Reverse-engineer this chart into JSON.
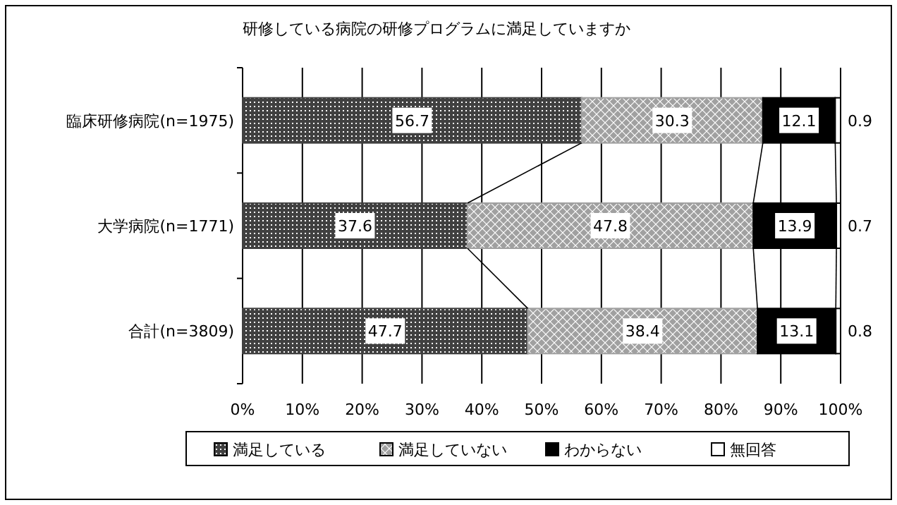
{
  "chart_data": {
    "type": "bar",
    "orientation": "horizontal",
    "stacked": true,
    "title": "研修している病院の研修プログラムに満足していますか",
    "categories": [
      "臨床研修病院(n=1975)",
      "大学病院(n=1771)",
      "合計(n=3809)"
    ],
    "series": [
      {
        "name": "満足している",
        "color": "#404040",
        "values": [
          56.7,
          37.6,
          47.7
        ]
      },
      {
        "name": "満足していない",
        "color": "#a0a0a0",
        "values": [
          30.3,
          47.8,
          38.4
        ]
      },
      {
        "name": "わからない",
        "color": "#000000",
        "values": [
          12.1,
          13.9,
          13.1
        ]
      },
      {
        "name": "無回答",
        "color": "#ffffff",
        "values": [
          0.9,
          0.7,
          0.8
        ]
      }
    ],
    "xlim": [
      0,
      100
    ],
    "xticks": [
      {
        "value": 0,
        "label": "0%"
      },
      {
        "value": 10,
        "label": "10%"
      },
      {
        "value": 20,
        "label": "20%"
      },
      {
        "value": 30,
        "label": "30%"
      },
      {
        "value": 40,
        "label": "40%"
      },
      {
        "value": 50,
        "label": "50%"
      },
      {
        "value": 60,
        "label": "60%"
      },
      {
        "value": 70,
        "label": "70%"
      },
      {
        "value": 80,
        "label": "80%"
      },
      {
        "value": 90,
        "label": "90%"
      },
      {
        "value": 100,
        "label": "100%"
      }
    ],
    "grid": "x",
    "legend": "bottom",
    "data_labels": true
  }
}
